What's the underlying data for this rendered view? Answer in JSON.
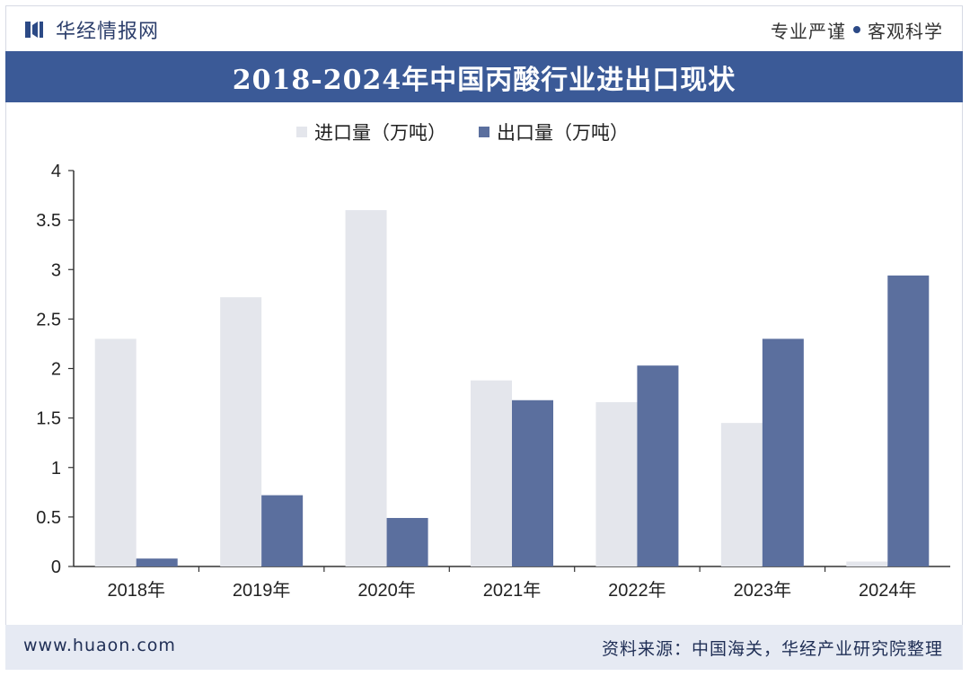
{
  "header": {
    "brand_name": "华经情报网",
    "slogan_left": "专业严谨",
    "slogan_right": "客观科学"
  },
  "colors": {
    "import": "#e4e6ec",
    "export": "#5b6f9e",
    "title_bar": "#3b5a97",
    "axis": "#333333"
  },
  "footer": {
    "url": "www.huaon.com",
    "source": "资料来源：中国海关，华经产业研究院整理"
  },
  "chart_data": {
    "type": "bar",
    "title": "2018-2024年中国丙酸行业进出口现状",
    "categories": [
      "2018年",
      "2019年",
      "2020年",
      "2021年",
      "2022年",
      "2023年",
      "2024年"
    ],
    "series": [
      {
        "name": "进口量（万吨）",
        "values": [
          2.3,
          2.72,
          3.6,
          1.88,
          1.66,
          1.45,
          0.05
        ]
      },
      {
        "name": "出口量（万吨）",
        "values": [
          0.08,
          0.72,
          0.49,
          1.68,
          2.03,
          2.3,
          2.94
        ]
      }
    ],
    "ylim": [
      0,
      4
    ],
    "yticks": [
      "0",
      "0.5",
      "1",
      "1.5",
      "2",
      "2.5",
      "3",
      "3.5",
      "4"
    ],
    "xlabel": "",
    "ylabel": "",
    "grid": false,
    "legend_position": "top-center"
  }
}
